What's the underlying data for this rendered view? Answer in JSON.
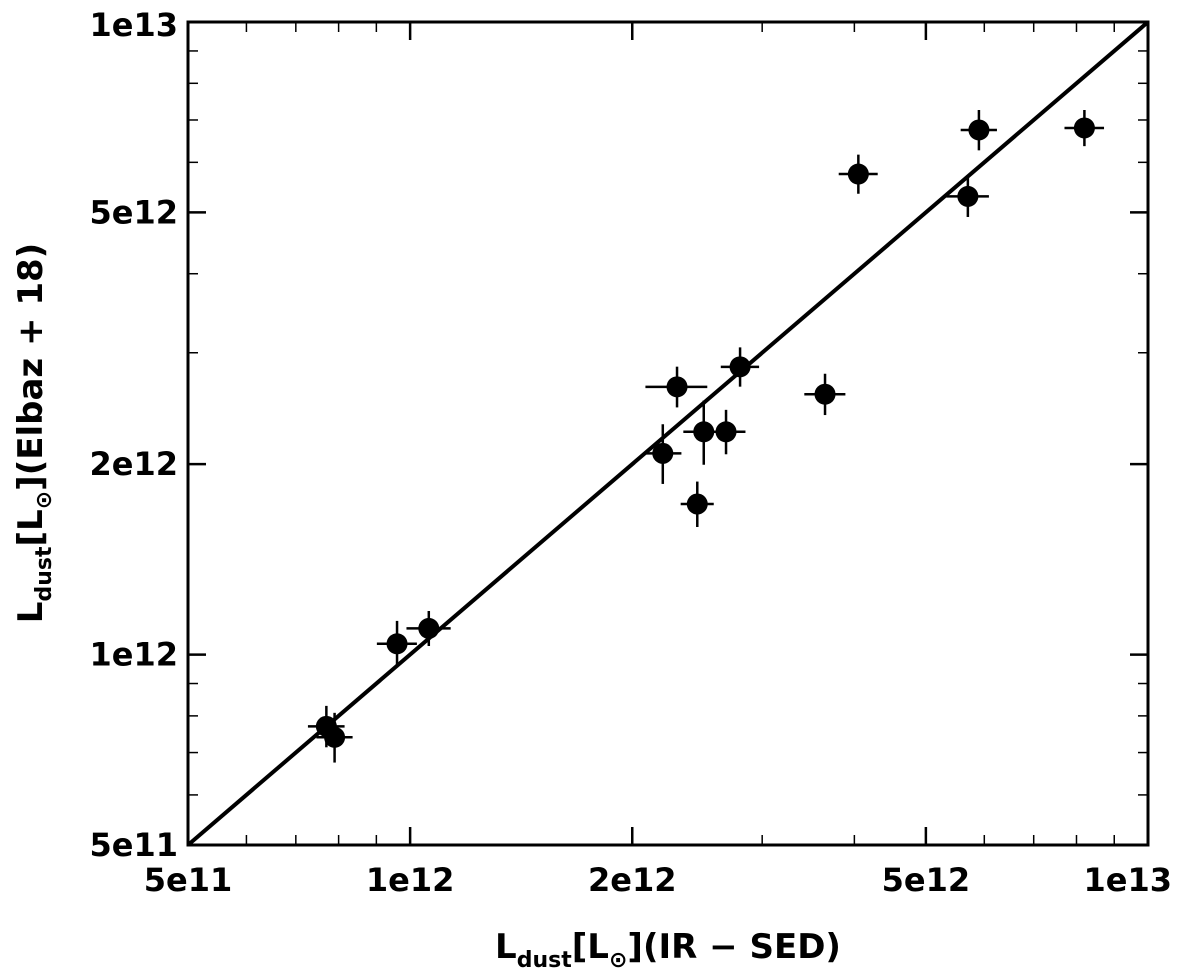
{
  "chart_data": {
    "type": "scatter",
    "title": "",
    "xlabel": {
      "main": "L",
      "sub": "dust",
      "rest": "[L",
      "sym_sub": "⊙",
      "tail": "](IR − SED)"
    },
    "ylabel": {
      "main": "L",
      "sub": "dust",
      "rest": "[L",
      "sym_sub": "⊙",
      "tail": "](Elbaz + 18)"
    },
    "xscale": "log",
    "yscale": "log",
    "xlim": [
      500000000000.0,
      10000000000000.0
    ],
    "ylim": [
      500000000000.0,
      10000000000000.0
    ],
    "xticks": [
      {
        "value": 500000000000.0,
        "label": "5e11"
      },
      {
        "value": 1000000000000.0,
        "label": "1e12"
      },
      {
        "value": 2000000000000.0,
        "label": "2e12"
      },
      {
        "value": 5000000000000.0,
        "label": "5e12"
      },
      {
        "value": 10000000000000.0,
        "label": "1e13"
      }
    ],
    "yticks": [
      {
        "value": 500000000000.0,
        "label": "5e11"
      },
      {
        "value": 1000000000000.0,
        "label": "1e12"
      },
      {
        "value": 2000000000000.0,
        "label": "2e12"
      },
      {
        "value": 5000000000000.0,
        "label": "5e12"
      },
      {
        "value": 10000000000000.0,
        "label": "1e13"
      }
    ],
    "reference_line": "one-to-one",
    "grid": false,
    "legend": "none",
    "marker_color": "#000000",
    "points": [
      {
        "x": 770000000000.0,
        "y": 770000000000.0,
        "xerr": 20000000000.0,
        "yerr": 30000000000.0
      },
      {
        "x": 790000000000.0,
        "y": 740000000000.0,
        "xerr": 20000000000.0,
        "yerr": 40000000000.0
      },
      {
        "x": 960000000000.0,
        "y": 1040000000000.0,
        "xerr": 30000000000.0,
        "yerr": 50000000000.0
      },
      {
        "x": 1060000000000.0,
        "y": 1100000000000.0,
        "xerr": 40000000000.0,
        "yerr": 30000000000.0
      },
      {
        "x": 2200000000000.0,
        "y": 2080000000000.0,
        "xerr": 60000000000.0,
        "yerr": 150000000000.0
      },
      {
        "x": 2300000000000.0,
        "y": 2650000000000.0,
        "xerr": 150000000000.0,
        "yerr": 100000000000.0
      },
      {
        "x": 2450000000000.0,
        "y": 1730000000000.0,
        "xerr": 50000000000.0,
        "yerr": 80000000000.0
      },
      {
        "x": 2500000000000.0,
        "y": 2250000000000.0,
        "xerr": 80000000000.0,
        "yerr": 180000000000.0
      },
      {
        "x": 2680000000000.0,
        "y": 2250000000000.0,
        "xerr": 80000000000.0,
        "yerr": 100000000000.0
      },
      {
        "x": 2800000000000.0,
        "y": 2850000000000.0,
        "xerr": 80000000000.0,
        "yerr": 100000000000.0
      },
      {
        "x": 3650000000000.0,
        "y": 2580000000000.0,
        "xerr": 120000000000.0,
        "yerr": 100000000000.0
      },
      {
        "x": 4050000000000.0,
        "y": 5750000000000.0,
        "xerr": 120000000000.0,
        "yerr": 200000000000.0
      },
      {
        "x": 5700000000000.0,
        "y": 5300000000000.0,
        "xerr": 200000000000.0,
        "yerr": 200000000000.0
      },
      {
        "x": 5900000000000.0,
        "y": 6750000000000.0,
        "xerr": 150000000000.0,
        "yerr": 250000000000.0
      },
      {
        "x": 8200000000000.0,
        "y": 6800000000000.0,
        "xerr": 250000000000.0,
        "yerr": 200000000000.0
      }
    ]
  }
}
